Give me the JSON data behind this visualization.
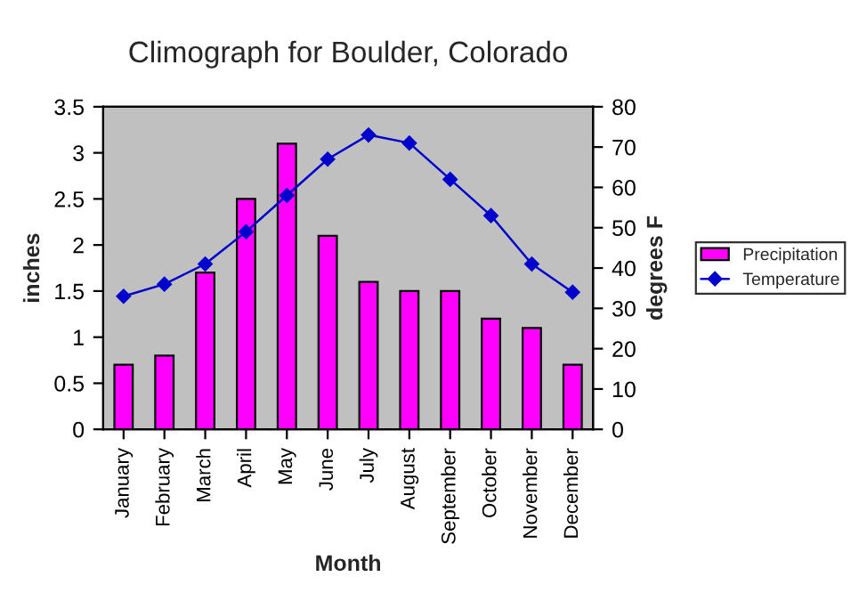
{
  "chart_data": {
    "type": "bar",
    "title": "Climograph for Boulder, Colorado",
    "xlabel": "Month",
    "ylabel": "inches",
    "y2label": "degrees F",
    "categories": [
      "January",
      "February",
      "March",
      "April",
      "May",
      "June",
      "July",
      "August",
      "September",
      "October",
      "November",
      "December"
    ],
    "series": [
      {
        "name": "Precipitation",
        "color": "#ff00ff",
        "values": [
          0.7,
          0.8,
          1.7,
          2.5,
          3.1,
          2.1,
          1.6,
          1.5,
          1.5,
          1.2,
          1.1,
          0.7
        ]
      },
      {
        "name": "Temperature",
        "type": "line",
        "axis": "y2",
        "color": "#0000cc",
        "marker": "diamond",
        "values": [
          33,
          36,
          41,
          49,
          58,
          67,
          73,
          71,
          62,
          53,
          41,
          34
        ]
      }
    ],
    "ylim": [
      0,
      3.5
    ],
    "yticks": [
      0,
      0.5,
      1,
      1.5,
      2,
      2.5,
      3,
      3.5
    ],
    "y2lim": [
      0,
      80
    ],
    "y2ticks": [
      0,
      10,
      20,
      30,
      40,
      50,
      60,
      70,
      80
    ],
    "grid": false,
    "legend": "right"
  }
}
